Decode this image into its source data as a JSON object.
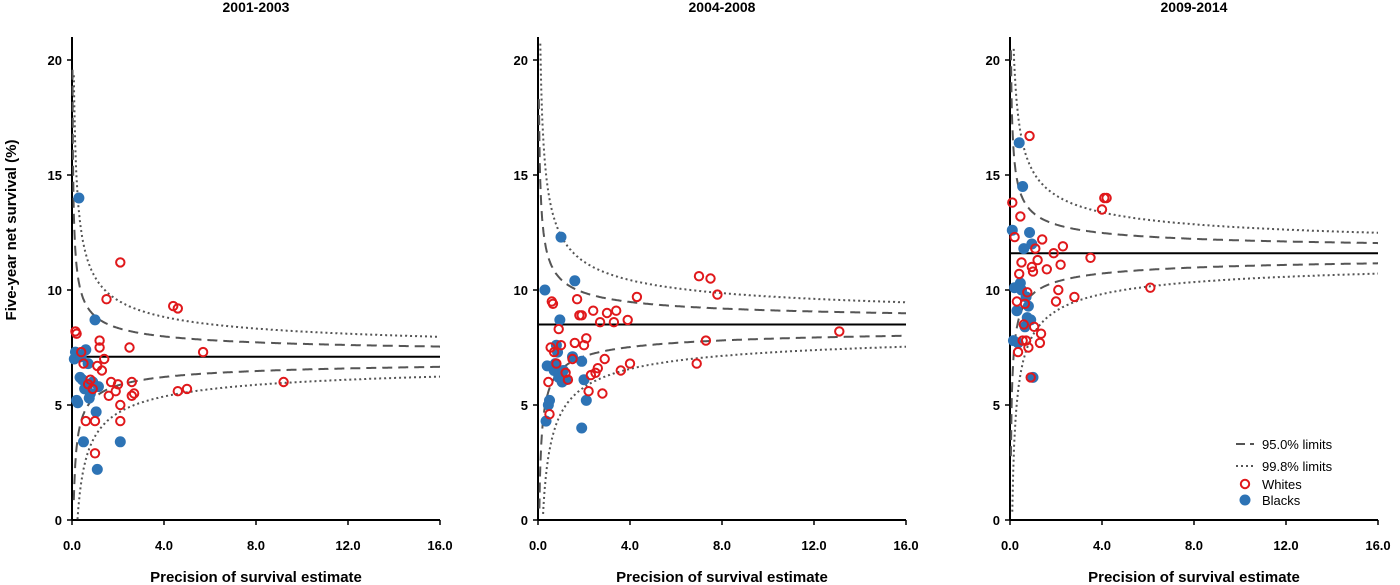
{
  "colors": {
    "whites": "#e0181b",
    "blacks": "#2d73b5",
    "limits": "#555555",
    "axis": "#000000"
  },
  "legend": {
    "limits95": "95.0% limits",
    "limits998": "99.8% limits",
    "whites": "Whites",
    "blacks": "Blacks",
    "placement": "bottom-right of third panel"
  },
  "chart_data": [
    {
      "type": "scatter",
      "subtype": "funnel-plot",
      "title": "2001-2003",
      "xlabel": "Precision of survival estimate",
      "ylabel": "Five-year net survival (%)",
      "xlim": [
        0,
        16
      ],
      "ylim": [
        0,
        21
      ],
      "xticks": [
        "0.0",
        "4.0",
        "8.0",
        "12.0",
        "16.0"
      ],
      "yticks": [
        "0",
        "5",
        "10",
        "15",
        "20"
      ],
      "target": 7.1,
      "limits": {
        "z95": 1.96,
        "z998": 3.09,
        "k95": 0.9,
        "k998": 1.12
      },
      "series": [
        {
          "name": "Whites",
          "marker": "open-circle",
          "points": [
            [
              0.15,
              8.2
            ],
            [
              0.2,
              8.1
            ],
            [
              0.4,
              7.3
            ],
            [
              0.5,
              6.8
            ],
            [
              0.6,
              4.3
            ],
            [
              0.7,
              5.9
            ],
            [
              0.8,
              6.1
            ],
            [
              0.9,
              5.7
            ],
            [
              1.0,
              2.9
            ],
            [
              1.0,
              4.3
            ],
            [
              1.1,
              6.7
            ],
            [
              1.2,
              7.5
            ],
            [
              1.2,
              7.8
            ],
            [
              1.3,
              6.5
            ],
            [
              1.4,
              7.0
            ],
            [
              1.5,
              9.6
            ],
            [
              1.6,
              5.4
            ],
            [
              1.7,
              6.0
            ],
            [
              1.9,
              5.6
            ],
            [
              2.0,
              5.9
            ],
            [
              2.1,
              11.2
            ],
            [
              2.1,
              5.0
            ],
            [
              2.1,
              4.3
            ],
            [
              2.5,
              7.5
            ],
            [
              2.6,
              5.4
            ],
            [
              2.6,
              6.0
            ],
            [
              2.7,
              5.5
            ],
            [
              4.4,
              9.3
            ],
            [
              4.6,
              9.2
            ],
            [
              4.6,
              5.6
            ],
            [
              5.0,
              5.7
            ],
            [
              5.7,
              7.3
            ],
            [
              9.2,
              6.0
            ]
          ]
        },
        {
          "name": "Blacks",
          "marker": "filled-circle",
          "points": [
            [
              0.1,
              7.0
            ],
            [
              0.15,
              7.3
            ],
            [
              0.2,
              5.2
            ],
            [
              0.25,
              5.1
            ],
            [
              0.3,
              14.0
            ],
            [
              0.35,
              6.2
            ],
            [
              0.4,
              7.1
            ],
            [
              0.45,
              6.1
            ],
            [
              0.5,
              3.4
            ],
            [
              0.55,
              5.7
            ],
            [
              0.6,
              7.4
            ],
            [
              0.65,
              5.8
            ],
            [
              0.7,
              6.8
            ],
            [
              0.75,
              5.3
            ],
            [
              0.8,
              5.5
            ],
            [
              0.9,
              6.0
            ],
            [
              1.0,
              8.7
            ],
            [
              1.05,
              4.7
            ],
            [
              1.1,
              2.2
            ],
            [
              1.15,
              5.8
            ],
            [
              2.1,
              3.4
            ]
          ]
        }
      ]
    },
    {
      "type": "scatter",
      "subtype": "funnel-plot",
      "title": "2004-2008",
      "xlabel": "Precision of survival estimate",
      "ylabel": "",
      "xlim": [
        0,
        16
      ],
      "ylim": [
        0,
        21
      ],
      "xticks": [
        "0.0",
        "4.0",
        "8.0",
        "12.0",
        "16.0"
      ],
      "yticks": [
        "0",
        "5",
        "10",
        "15",
        "20"
      ],
      "target": 8.5,
      "limits": {
        "z95": 1.96,
        "z998": 3.09,
        "k95": 1.0,
        "k998": 1.25
      },
      "series": [
        {
          "name": "Whites",
          "marker": "open-circle",
          "points": [
            [
              0.45,
              6.0
            ],
            [
              0.5,
              4.6
            ],
            [
              0.55,
              7.5
            ],
            [
              0.6,
              9.5
            ],
            [
              0.65,
              9.4
            ],
            [
              0.7,
              7.3
            ],
            [
              0.8,
              6.8
            ],
            [
              0.9,
              8.3
            ],
            [
              1.0,
              7.6
            ],
            [
              1.2,
              6.4
            ],
            [
              1.3,
              6.1
            ],
            [
              1.5,
              7.0
            ],
            [
              1.6,
              7.7
            ],
            [
              1.7,
              9.6
            ],
            [
              1.8,
              8.9
            ],
            [
              1.9,
              8.9
            ],
            [
              2.0,
              7.6
            ],
            [
              2.1,
              7.9
            ],
            [
              2.2,
              5.6
            ],
            [
              2.3,
              6.3
            ],
            [
              2.4,
              9.1
            ],
            [
              2.5,
              6.4
            ],
            [
              2.6,
              6.6
            ],
            [
              2.7,
              8.6
            ],
            [
              2.8,
              5.5
            ],
            [
              2.9,
              7.0
            ],
            [
              3.0,
              9.0
            ],
            [
              3.3,
              8.6
            ],
            [
              3.4,
              9.1
            ],
            [
              3.6,
              6.5
            ],
            [
              3.9,
              8.7
            ],
            [
              4.0,
              6.8
            ],
            [
              4.3,
              9.7
            ],
            [
              6.9,
              6.8
            ],
            [
              7.0,
              10.6
            ],
            [
              7.3,
              7.8
            ],
            [
              7.5,
              10.5
            ],
            [
              7.8,
              9.8
            ],
            [
              13.1,
              8.2
            ]
          ]
        },
        {
          "name": "Blacks",
          "marker": "filled-circle",
          "points": [
            [
              0.3,
              10.0
            ],
            [
              0.35,
              4.3
            ],
            [
              0.4,
              6.7
            ],
            [
              0.45,
              5.0
            ],
            [
              0.5,
              5.2
            ],
            [
              0.7,
              6.5
            ],
            [
              0.75,
              6.8
            ],
            [
              0.8,
              7.6
            ],
            [
              0.85,
              7.3
            ],
            [
              0.9,
              6.2
            ],
            [
              0.95,
              8.7
            ],
            [
              1.0,
              12.3
            ],
            [
              1.05,
              6.0
            ],
            [
              1.1,
              6.5
            ],
            [
              1.2,
              6.1
            ],
            [
              1.6,
              10.4
            ],
            [
              1.5,
              7.1
            ],
            [
              1.9,
              6.9
            ],
            [
              1.9,
              4.0
            ],
            [
              2.0,
              6.1
            ],
            [
              2.1,
              5.2
            ]
          ]
        }
      ]
    },
    {
      "type": "scatter",
      "subtype": "funnel-plot",
      "title": "2009-2014",
      "xlabel": "Precision of survival estimate",
      "ylabel": "",
      "xlim": [
        0,
        16
      ],
      "ylim": [
        0,
        21
      ],
      "xticks": [
        "0.0",
        "4.0",
        "8.0",
        "12.0",
        "16.0"
      ],
      "yticks": [
        "0",
        "5",
        "10",
        "15",
        "20"
      ],
      "target": 11.6,
      "limits": {
        "z95": 1.96,
        "z998": 3.09,
        "k95": 0.9,
        "k998": 1.15
      },
      "series": [
        {
          "name": "Whites",
          "marker": "open-circle",
          "points": [
            [
              0.1,
              13.8
            ],
            [
              0.2,
              12.3
            ],
            [
              0.3,
              9.5
            ],
            [
              0.35,
              7.3
            ],
            [
              0.4,
              10.7
            ],
            [
              0.45,
              13.2
            ],
            [
              0.5,
              11.2
            ],
            [
              0.55,
              7.8
            ],
            [
              0.6,
              8.5
            ],
            [
              0.65,
              9.4
            ],
            [
              0.7,
              7.8
            ],
            [
              0.75,
              9.9
            ],
            [
              0.8,
              7.5
            ],
            [
              0.85,
              16.7
            ],
            [
              0.9,
              6.2
            ],
            [
              0.95,
              11.0
            ],
            [
              1.0,
              10.8
            ],
            [
              1.05,
              8.4
            ],
            [
              1.1,
              11.8
            ],
            [
              1.2,
              11.3
            ],
            [
              1.3,
              7.7
            ],
            [
              1.35,
              8.1
            ],
            [
              1.4,
              12.2
            ],
            [
              1.6,
              10.9
            ],
            [
              1.9,
              11.6
            ],
            [
              2.0,
              9.5
            ],
            [
              2.1,
              10.0
            ],
            [
              2.2,
              11.1
            ],
            [
              2.3,
              11.9
            ],
            [
              2.8,
              9.7
            ],
            [
              3.5,
              11.4
            ],
            [
              4.0,
              13.5
            ],
            [
              4.1,
              14.0
            ],
            [
              4.2,
              14.0
            ],
            [
              6.1,
              10.1
            ]
          ]
        },
        {
          "name": "Blacks",
          "marker": "filled-circle",
          "points": [
            [
              0.1,
              12.6
            ],
            [
              0.15,
              7.8
            ],
            [
              0.2,
              10.1
            ],
            [
              0.3,
              9.1
            ],
            [
              0.35,
              7.7
            ],
            [
              0.4,
              16.4
            ],
            [
              0.45,
              10.3
            ],
            [
              0.5,
              10.0
            ],
            [
              0.55,
              14.5
            ],
            [
              0.6,
              11.8
            ],
            [
              0.65,
              8.4
            ],
            [
              0.7,
              9.7
            ],
            [
              0.75,
              8.8
            ],
            [
              0.8,
              9.3
            ],
            [
              0.85,
              12.5
            ],
            [
              0.9,
              8.7
            ],
            [
              0.95,
              12.0
            ],
            [
              1.0,
              6.2
            ]
          ]
        }
      ]
    }
  ]
}
